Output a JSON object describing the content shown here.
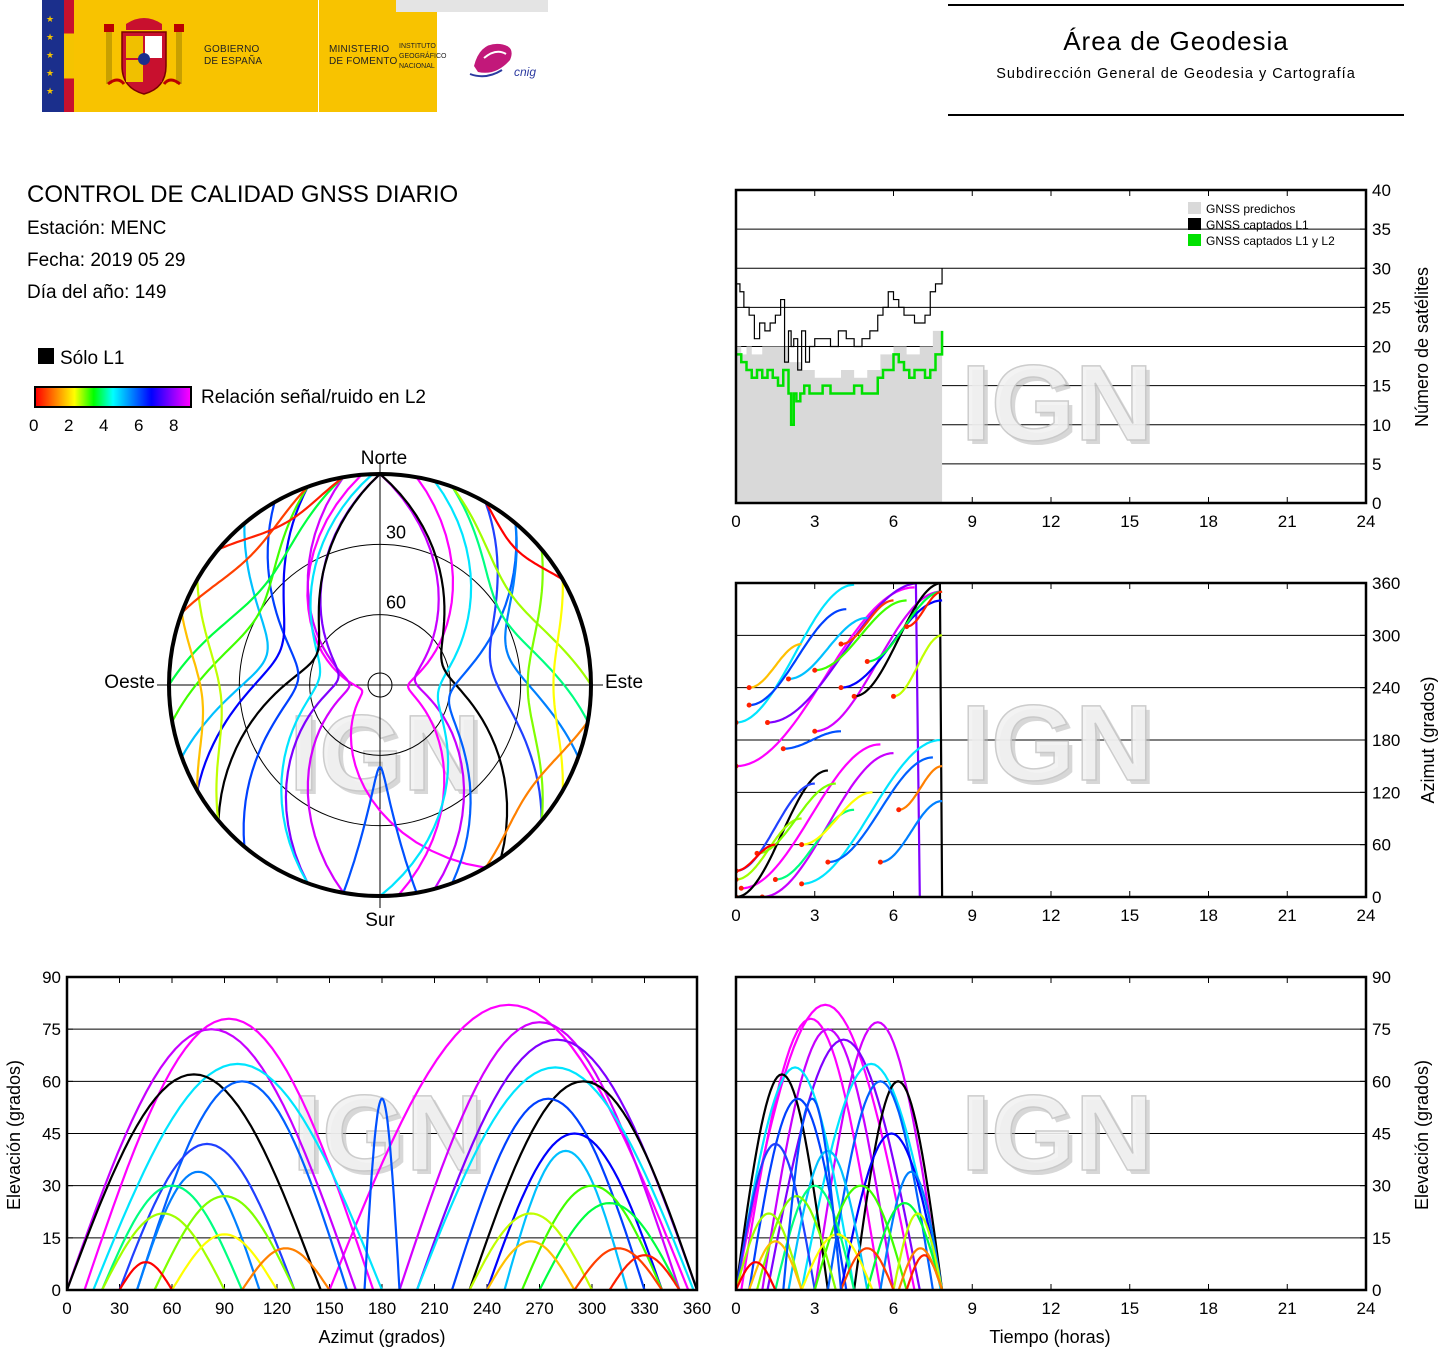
{
  "header": {
    "gov1": "GOBIERNO",
    "gov2": "DE ESPAÑA",
    "min1": "MINISTERIO",
    "min2": "DE FOMENTO",
    "ign1": "INSTITUTO",
    "ign2": "GEOGRÁFICO",
    "ign3": "NACIONAL",
    "cnig": "cnig",
    "area_title": "Área de Geodesia",
    "area_subtitle": "Subdirección General de Geodesia y Cartografía"
  },
  "info": {
    "title": "CONTROL DE CALIDAD GNSS DIARIO",
    "station": "Estación: MENC",
    "date": "Fecha: 2019 05 29",
    "doy": "Día del año: 149"
  },
  "legend": {
    "solo_l1": "Sólo L1",
    "snr_label": "Relación señal/ruido en L2",
    "scale_ticks": [
      "0",
      "2",
      "4",
      "6",
      "8"
    ]
  },
  "watermark": "IGN",
  "colors": {
    "predicted": "#d9d9d9",
    "l1": "#000000",
    "l1l2": "#00e000",
    "snr_scale": [
      "#ff0000",
      "#ff8000",
      "#ffff00",
      "#00ff00",
      "#00ffff",
      "#0080ff",
      "#0000ff",
      "#8000ff",
      "#ff00ff"
    ]
  },
  "chart_data": [
    {
      "type": "line",
      "name": "sats-count",
      "xlim": [
        0,
        24
      ],
      "ylim": [
        0,
        40
      ],
      "xticks": [
        0,
        3,
        6,
        9,
        12,
        15,
        18,
        21,
        24
      ],
      "yticks": [
        0,
        5,
        10,
        15,
        20,
        25,
        30,
        35,
        40
      ],
      "ylabel": "Número de satélites",
      "legend_position": "top-right",
      "legend": [
        "GNSS predichos",
        "GNSS captados L1",
        "GNSS captados L1 y L2"
      ],
      "series": [
        {
          "name": "GNSS predichos",
          "x": [
            0,
            0.2,
            0.4,
            0.6,
            1.0,
            1.5,
            2.0,
            2.5,
            3.0,
            3.5,
            4.0,
            4.5,
            5.0,
            5.5,
            6.0,
            6.5,
            7.0,
            7.5,
            7.85
          ],
          "values": [
            20,
            19,
            20,
            19,
            20,
            20,
            18,
            17,
            16,
            16,
            17,
            16,
            17,
            19,
            20,
            19,
            20,
            22,
            23
          ]
        },
        {
          "name": "GNSS captados L1",
          "x": [
            0,
            0.15,
            0.3,
            0.5,
            0.7,
            0.9,
            1.1,
            1.3,
            1.5,
            1.7,
            1.85,
            2.0,
            2.1,
            2.2,
            2.35,
            2.5,
            2.65,
            2.8,
            3.0,
            3.3,
            3.6,
            3.9,
            4.2,
            4.5,
            4.8,
            5.1,
            5.4,
            5.6,
            5.8,
            6.0,
            6.2,
            6.4,
            6.6,
            6.8,
            7.0,
            7.2,
            7.4,
            7.6,
            7.85
          ],
          "values": [
            28,
            27,
            25,
            24,
            21,
            23,
            22,
            23,
            24,
            26,
            18,
            22,
            20,
            21,
            17,
            22,
            18,
            20,
            21,
            21,
            20,
            22,
            21,
            20,
            21,
            22,
            24,
            25,
            27,
            26,
            25,
            24,
            24,
            23,
            23,
            24,
            27,
            28,
            30
          ]
        },
        {
          "name": "GNSS captados L1 y L2",
          "x": [
            0,
            0.2,
            0.4,
            0.6,
            0.8,
            1.0,
            1.2,
            1.4,
            1.6,
            1.8,
            2.0,
            2.1,
            2.2,
            2.3,
            2.45,
            2.6,
            2.8,
            3.0,
            3.3,
            3.6,
            3.9,
            4.2,
            4.5,
            4.8,
            5.1,
            5.4,
            5.6,
            5.8,
            6.0,
            6.2,
            6.4,
            6.6,
            6.8,
            7.0,
            7.2,
            7.4,
            7.6,
            7.85
          ],
          "values": [
            19,
            18,
            17,
            16,
            17,
            16,
            17,
            16,
            15,
            17,
            14,
            10,
            14,
            13,
            14,
            15,
            14,
            14,
            15,
            14,
            14,
            14,
            15,
            14,
            14,
            16,
            17,
            17,
            19,
            18,
            17,
            16,
            17,
            17,
            16,
            17,
            19,
            22
          ]
        }
      ]
    },
    {
      "type": "scatter",
      "name": "azimuth-time",
      "xlim": [
        0,
        24
      ],
      "ylim": [
        0,
        360
      ],
      "xticks": [
        0,
        3,
        6,
        9,
        12,
        15,
        18,
        21,
        24
      ],
      "yticks": [
        0,
        60,
        120,
        180,
        240,
        300,
        360
      ],
      "ylabel": "Azimut (grados)"
    },
    {
      "type": "scatter",
      "name": "skyplot",
      "labels": {
        "north": "Norte",
        "south": "Sur",
        "east": "Este",
        "west": "Oeste"
      },
      "rings": [
        30,
        60
      ]
    },
    {
      "type": "scatter",
      "name": "elevation-azimuth",
      "xlim": [
        0,
        360
      ],
      "ylim": [
        0,
        90
      ],
      "xticks": [
        0,
        30,
        60,
        90,
        120,
        150,
        180,
        210,
        240,
        270,
        300,
        330,
        360
      ],
      "yticks": [
        0,
        15,
        30,
        45,
        60,
        75,
        90
      ],
      "xlabel": "Azimut (grados)",
      "ylabel": "Elevación (grados)"
    },
    {
      "type": "scatter",
      "name": "elevation-time",
      "xlim": [
        0,
        24
      ],
      "ylim": [
        0,
        90
      ],
      "xticks": [
        0,
        3,
        6,
        9,
        12,
        15,
        18,
        21,
        24
      ],
      "yticks": [
        0,
        15,
        30,
        45,
        60,
        75,
        90
      ],
      "xlabel": "Tiempo (horas)",
      "ylabel": "Elevación (grados)"
    }
  ],
  "tracks": [
    {
      "az0": 150,
      "az1": 355,
      "max": 82,
      "t0": 0.0,
      "t1": 6.8,
      "c": "#ff00ff"
    },
    {
      "az0": 10,
      "az1": 175,
      "max": 78,
      "t0": 0.2,
      "t1": 5.5,
      "c": "#ff00ff"
    },
    {
      "az0": 190,
      "az1": 350,
      "max": 77,
      "t0": 3.0,
      "t1": 7.8,
      "c": "#d400ff"
    },
    {
      "az0": 0,
      "az1": 165,
      "max": 75,
      "t0": 1.0,
      "t1": 6.0,
      "c": "#c800ff"
    },
    {
      "az0": 200,
      "az1": 360,
      "max": 72,
      "t0": 1.2,
      "t1": 7.0,
      "c": "#8000ff"
    },
    {
      "az0": 15,
      "az1": 180,
      "max": 65,
      "t0": 2.5,
      "t1": 7.8,
      "c": "#00e5ff"
    },
    {
      "az0": 200,
      "az1": 358,
      "max": 64,
      "t0": 0.0,
      "t1": 4.5,
      "c": "#00e5ff"
    },
    {
      "az0": 0,
      "az1": 145,
      "max": 62,
      "t0": 0.0,
      "t1": 3.5,
      "c": "#000000"
    },
    {
      "az0": 230,
      "az1": 360,
      "max": 60,
      "t0": 4.5,
      "t1": 7.85,
      "c": "#000000"
    },
    {
      "az0": 40,
      "az1": 160,
      "max": 60,
      "t0": 3.5,
      "t1": 7.5,
      "c": "#0060ff"
    },
    {
      "az0": 220,
      "az1": 330,
      "max": 55,
      "t0": 0.5,
      "t1": 4.2,
      "c": "#0040ff"
    },
    {
      "az0": 30,
      "az1": 130,
      "max": 42,
      "t0": 0.0,
      "t1": 3.0,
      "c": "#2040ff"
    },
    {
      "az0": 240,
      "az1": 340,
      "max": 45,
      "t0": 4.0,
      "t1": 7.85,
      "c": "#0000ff"
    },
    {
      "az0": 40,
      "az1": 110,
      "max": 34,
      "t0": 5.5,
      "t1": 7.85,
      "c": "#0080ff"
    },
    {
      "az0": 250,
      "az1": 320,
      "max": 40,
      "t0": 2.0,
      "t1": 5.0,
      "c": "#00c0ff"
    },
    {
      "az0": 20,
      "az1": 100,
      "max": 30,
      "t0": 1.5,
      "t1": 4.5,
      "c": "#00ff80"
    },
    {
      "az0": 260,
      "az1": 340,
      "max": 30,
      "t0": 3.0,
      "t1": 6.5,
      "c": "#40ff00"
    },
    {
      "az0": 20,
      "az1": 90,
      "max": 22,
      "t0": 0.0,
      "t1": 2.5,
      "c": "#a0ff00"
    },
    {
      "az0": 270,
      "az1": 350,
      "max": 25,
      "t0": 5.0,
      "t1": 7.85,
      "c": "#00ff40"
    },
    {
      "az0": 50,
      "az1": 130,
      "max": 27,
      "t0": 0.8,
      "t1": 3.8,
      "c": "#80ff00"
    },
    {
      "az0": 230,
      "az1": 300,
      "max": 22,
      "t0": 6.0,
      "t1": 7.85,
      "c": "#c0ff00"
    },
    {
      "az0": 60,
      "az1": 120,
      "max": 16,
      "t0": 2.5,
      "t1": 5.2,
      "c": "#ffff00"
    },
    {
      "az0": 240,
      "az1": 290,
      "max": 14,
      "t0": 0.5,
      "t1": 2.5,
      "c": "#ffc000"
    },
    {
      "az0": 290,
      "az1": 340,
      "max": 12,
      "t0": 4.0,
      "t1": 6.0,
      "c": "#ff4000"
    },
    {
      "az0": 30,
      "az1": 60,
      "max": 8,
      "t0": 0.0,
      "t1": 1.5,
      "c": "#ff0000"
    },
    {
      "az0": 310,
      "az1": 350,
      "max": 10,
      "t0": 6.5,
      "t1": 7.85,
      "c": "#ff2000"
    },
    {
      "az0": 100,
      "az1": 150,
      "max": 12,
      "t0": 6.2,
      "t1": 7.85,
      "c": "#ff8000"
    },
    {
      "az0": 170,
      "az1": 190,
      "max": 55,
      "t0": 1.8,
      "t1": 4.0,
      "c": "#0050ff"
    }
  ]
}
